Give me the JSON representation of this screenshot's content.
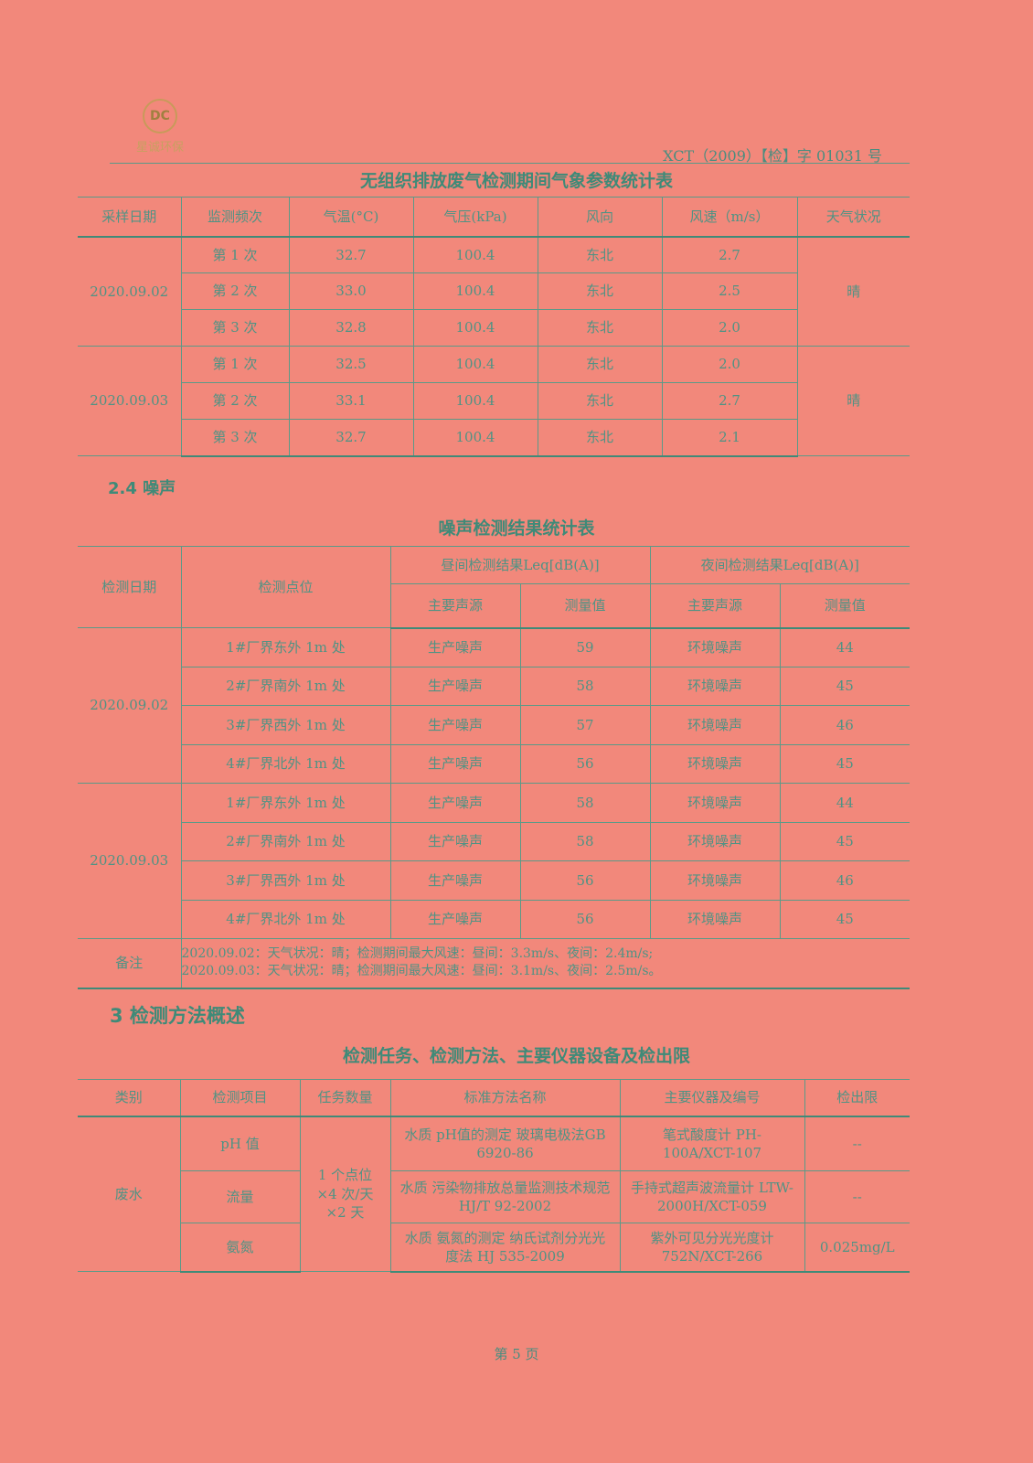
{
  "header": {
    "logo_text": "星诚环保",
    "doc_number": "XCT（2009）【检】字 01031 号"
  },
  "table1": {
    "title": "无组织排放废气检测期间气象参数统计表",
    "headers": [
      "采样日期",
      "监测频次",
      "气温(°C)",
      "气压(kPa)",
      "风向",
      "风速（m/s）",
      "天气状况"
    ],
    "groups": [
      {
        "date": "2020.09.02",
        "weather": "晴",
        "rows": [
          [
            "第 1 次",
            "32.7",
            "100.4",
            "东北",
            "2.7"
          ],
          [
            "第 2 次",
            "33.0",
            "100.4",
            "东北",
            "2.5"
          ],
          [
            "第 3 次",
            "32.8",
            "100.4",
            "东北",
            "2.0"
          ]
        ]
      },
      {
        "date": "2020.09.03",
        "weather": "晴",
        "rows": [
          [
            "第 1 次",
            "32.5",
            "100.4",
            "东北",
            "2.0"
          ],
          [
            "第 2 次",
            "33.1",
            "100.4",
            "东北",
            "2.7"
          ],
          [
            "第 3 次",
            "32.7",
            "100.4",
            "东北",
            "2.1"
          ]
        ]
      }
    ]
  },
  "section24": "2.4  噪声",
  "table2": {
    "title": "噪声检测结果统计表",
    "h_date": "检测日期",
    "h_point": "检测点位",
    "h_day": "昼间检测结果Leq[dB(A)]",
    "h_night": "夜间检测结果Leq[dB(A)]",
    "h_sub": [
      "主要声源",
      "测量值",
      "主要声源",
      "测量值"
    ],
    "groups": [
      {
        "date": "2020.09.02",
        "rows": [
          [
            "1#厂界东外 1m 处",
            "生产噪声",
            "59",
            "环境噪声",
            "44"
          ],
          [
            "2#厂界南外 1m 处",
            "生产噪声",
            "58",
            "环境噪声",
            "45"
          ],
          [
            "3#厂界西外 1m 处",
            "生产噪声",
            "57",
            "环境噪声",
            "46"
          ],
          [
            "4#厂界北外 1m 处",
            "生产噪声",
            "56",
            "环境噪声",
            "45"
          ]
        ]
      },
      {
        "date": "2020.09.03",
        "rows": [
          [
            "1#厂界东外 1m 处",
            "生产噪声",
            "58",
            "环境噪声",
            "44"
          ],
          [
            "2#厂界南外 1m 处",
            "生产噪声",
            "58",
            "环境噪声",
            "45"
          ],
          [
            "3#厂界西外 1m 处",
            "生产噪声",
            "56",
            "环境噪声",
            "46"
          ],
          [
            "4#厂界北外 1m 处",
            "生产噪声",
            "56",
            "环境噪声",
            "45"
          ]
        ]
      }
    ],
    "note_label": "备注",
    "notes": [
      "2020.09.02：天气状况：晴；检测期间最大风速：昼间：3.3m/s、夜间：2.4m/s;",
      "2020.09.03：天气状况：晴；检测期间最大风速：昼间：3.1m/s、夜间：2.5m/s。"
    ]
  },
  "section3": "3  检测方法概述",
  "table3": {
    "title": "检测任务、检测方法、主要仪器设备及检出限",
    "headers": [
      "类别",
      "检测项目",
      "任务数量",
      "标准方法名称",
      "主要仪器及编号",
      "检出限"
    ],
    "category": "废水",
    "quantity": "1 个点位 ×4 次/天 ×2 天",
    "rows": [
      {
        "item": "pH 值",
        "method": "水质 pH值的测定 玻璃电极法GB 6920-86",
        "instrument": "笔式酸度计 PH-100A/XCT-107",
        "limit": "--"
      },
      {
        "item": "流量",
        "method": "水质 污染物排放总量监测技术规范 HJ/T 92-2002",
        "instrument": "手持式超声波流量计 LTW-2000H/XCT-059",
        "limit": "--"
      },
      {
        "item": "氨氮",
        "method": "水质 氨氮的测定 纳氏试剂分光光度法 HJ 535-2009",
        "instrument": "紫外可见分光光度计 752N/XCT-266",
        "limit": "0.025mg/L"
      }
    ]
  },
  "footer": "第 5 页"
}
